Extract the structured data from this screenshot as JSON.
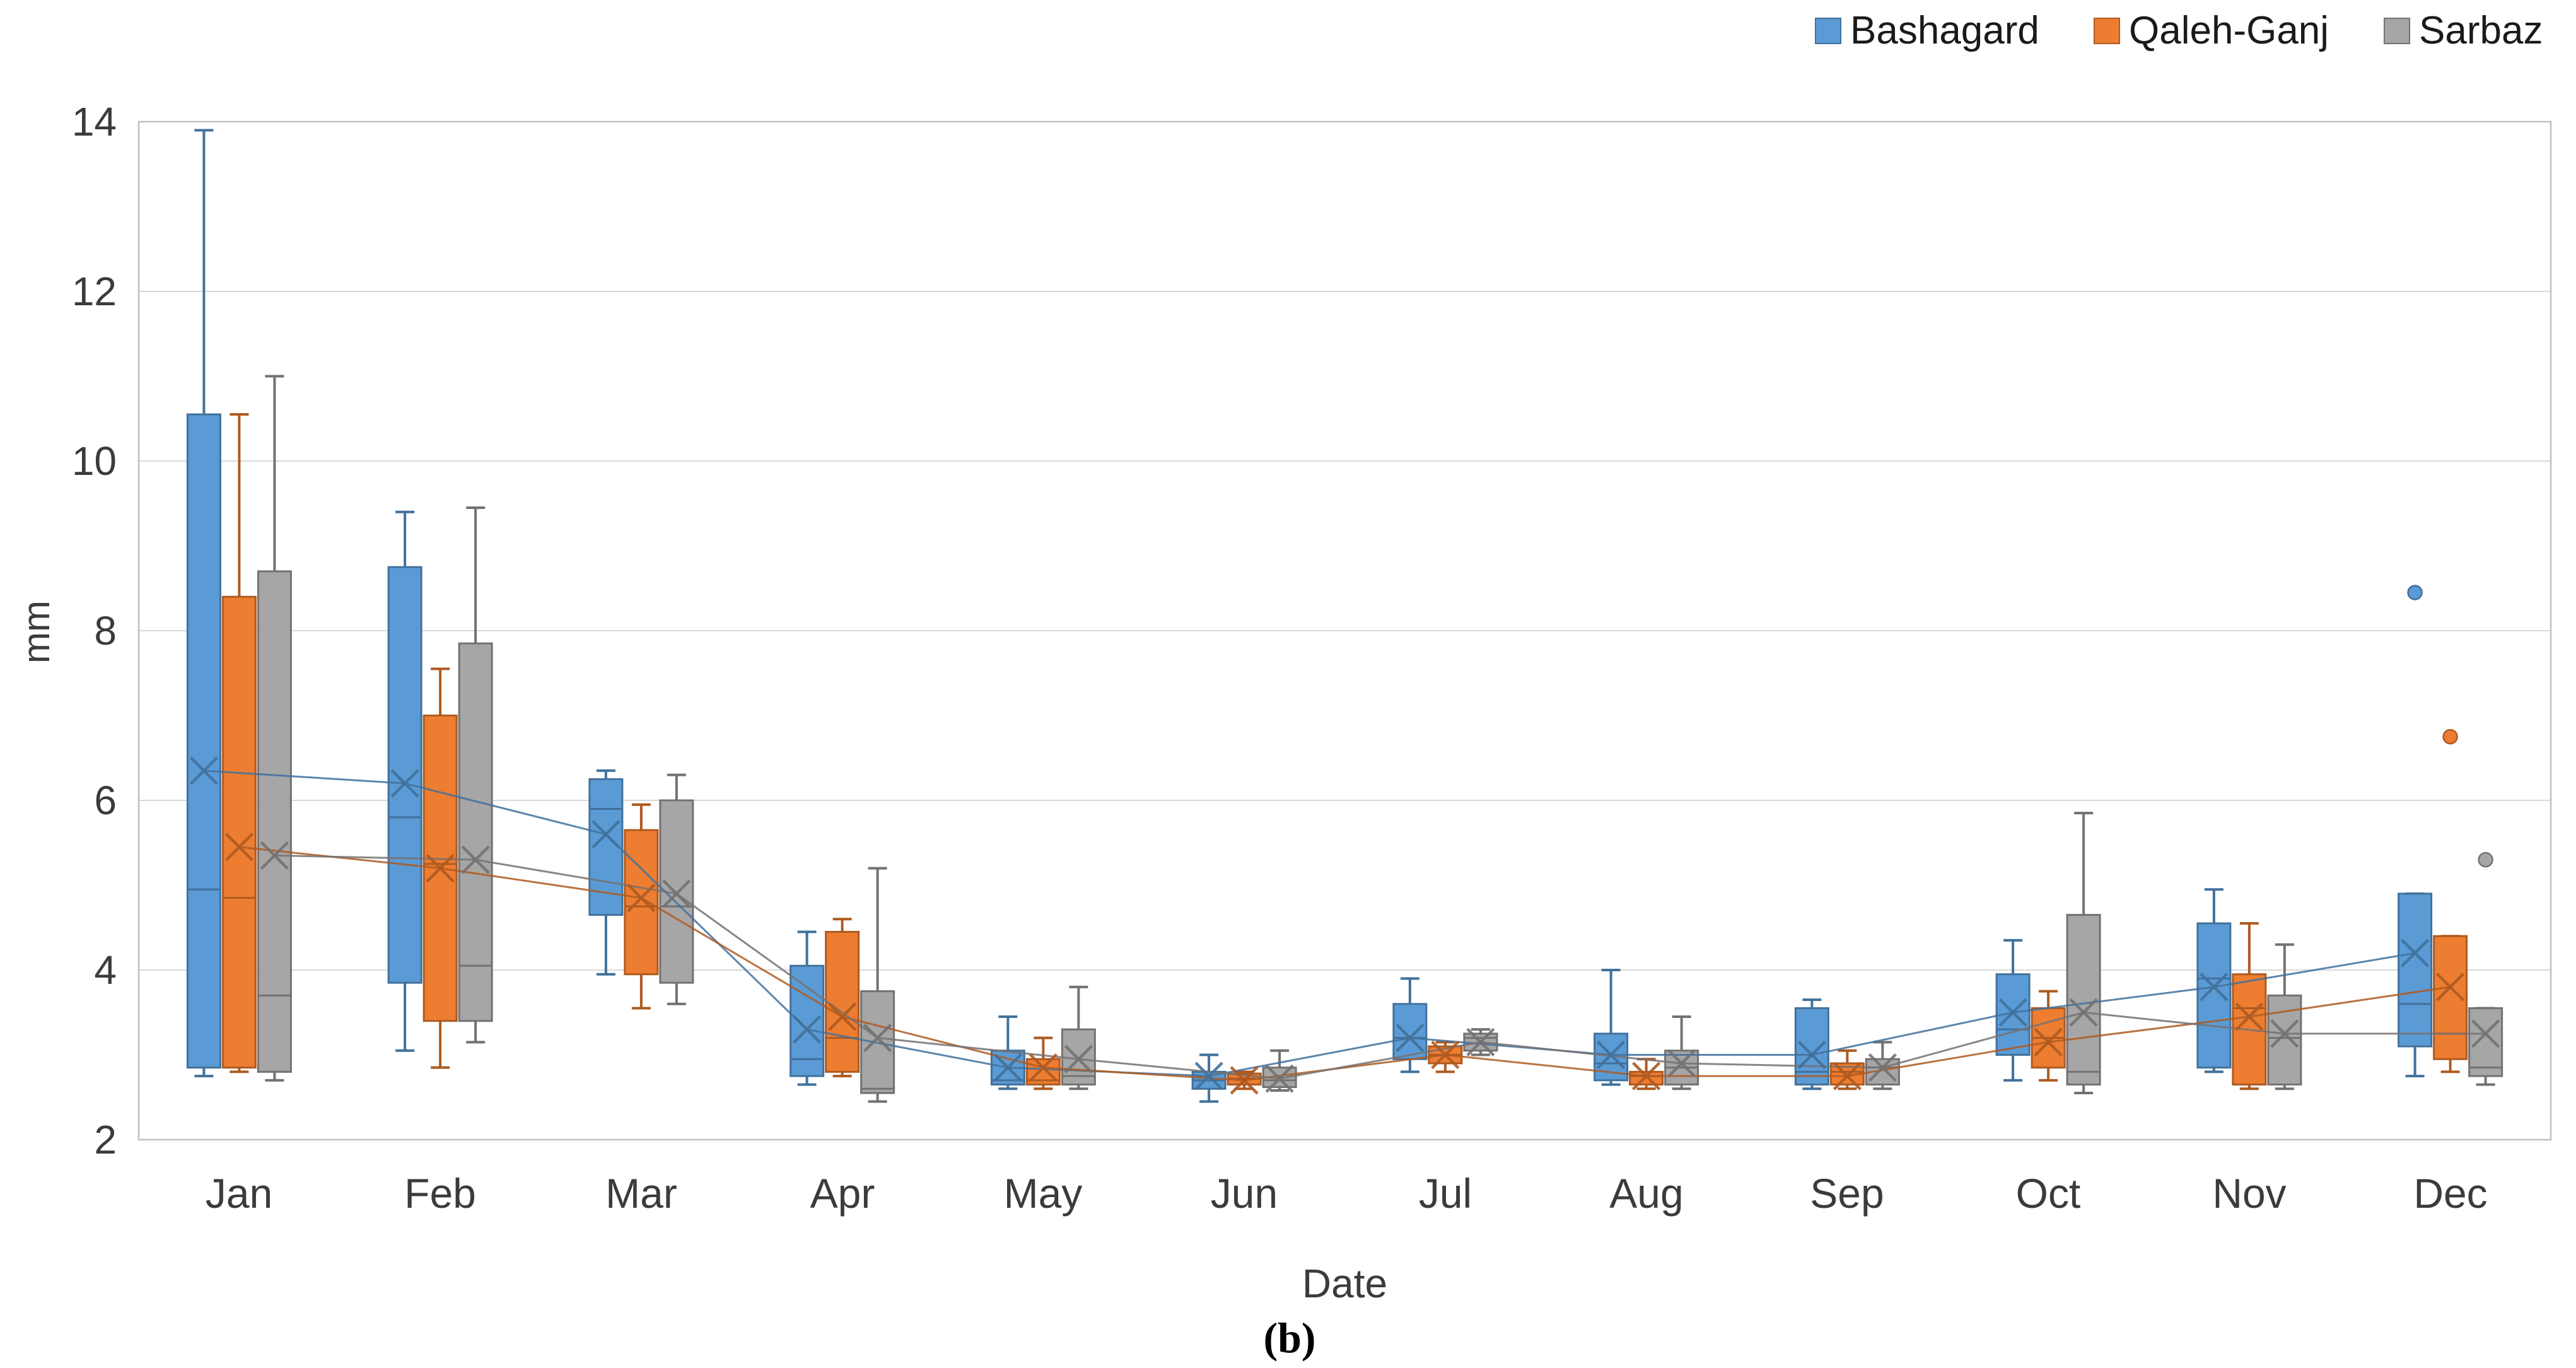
{
  "axes": {
    "y_label": "mm",
    "x_label": "Date",
    "caption": "(b)",
    "y_tick_labels": [
      "14",
      "12",
      "10",
      "8",
      "6",
      "4",
      "2"
    ],
    "grid_color": "#d9d9d9",
    "frame_color": "#bfbfbf",
    "text_color": "#3b3b3b"
  },
  "legend": {
    "position": "top-right",
    "items": [
      {
        "label": "Bashagard"
      },
      {
        "label": "Qaleh-Ganj"
      },
      {
        "label": "Sarbaz"
      }
    ]
  },
  "chart_data": {
    "type": "boxplot",
    "title": "",
    "xlabel": "Date",
    "ylabel": "mm",
    "ylim": [
      2,
      14
    ],
    "y_ticks": [
      2,
      4,
      6,
      8,
      10,
      12,
      14
    ],
    "grid": true,
    "legend_position": "top-right",
    "categories": [
      "Jan",
      "Feb",
      "Mar",
      "Apr",
      "May",
      "Jun",
      "Jul",
      "Aug",
      "Sep",
      "Oct",
      "Nov",
      "Dec"
    ],
    "mean_marker": "x",
    "mean_line": true,
    "series": [
      {
        "name": "Bashagard",
        "fill": "#5B9BD5",
        "stroke": "#41719C",
        "stats": [
          {
            "min": 2.75,
            "q1": 2.85,
            "median": 4.95,
            "q3": 10.55,
            "max": 13.9,
            "mean": 6.35,
            "outliers": []
          },
          {
            "min": 3.05,
            "q1": 3.85,
            "median": 5.8,
            "q3": 8.75,
            "max": 9.4,
            "mean": 6.2,
            "outliers": []
          },
          {
            "min": 3.95,
            "q1": 4.65,
            "median": 5.9,
            "q3": 6.25,
            "max": 6.35,
            "mean": 5.6,
            "outliers": []
          },
          {
            "min": 2.65,
            "q1": 2.75,
            "median": 2.95,
            "q3": 4.05,
            "max": 4.45,
            "mean": 3.3,
            "outliers": []
          },
          {
            "min": 2.6,
            "q1": 2.65,
            "median": 2.7,
            "q3": 3.05,
            "max": 3.45,
            "mean": 2.85,
            "outliers": []
          },
          {
            "min": 2.45,
            "q1": 2.6,
            "median": 2.7,
            "q3": 2.8,
            "max": 3.0,
            "mean": 2.75,
            "outliers": []
          },
          {
            "min": 2.8,
            "q1": 2.95,
            "median": 3.2,
            "q3": 3.6,
            "max": 3.9,
            "mean": 3.2,
            "outliers": []
          },
          {
            "min": 2.65,
            "q1": 2.7,
            "median": 2.9,
            "q3": 3.25,
            "max": 4.0,
            "mean": 3.0,
            "outliers": []
          },
          {
            "min": 2.6,
            "q1": 2.65,
            "median": 2.8,
            "q3": 3.55,
            "max": 3.65,
            "mean": 3.0,
            "outliers": []
          },
          {
            "min": 2.7,
            "q1": 3.0,
            "median": 3.3,
            "q3": 3.95,
            "max": 4.35,
            "mean": 3.5,
            "outliers": []
          },
          {
            "min": 2.8,
            "q1": 2.85,
            "median": 3.9,
            "q3": 4.55,
            "max": 4.95,
            "mean": 3.8,
            "outliers": []
          },
          {
            "min": 2.75,
            "q1": 3.1,
            "median": 3.6,
            "q3": 4.9,
            "max": 4.9,
            "mean": 4.2,
            "outliers": [
              8.45
            ]
          }
        ]
      },
      {
        "name": "Qaleh-Ganj",
        "fill": "#ED7D31",
        "stroke": "#AE5A21",
        "stats": [
          {
            "min": 2.8,
            "q1": 2.85,
            "median": 4.85,
            "q3": 8.4,
            "max": 10.55,
            "mean": 5.45,
            "outliers": []
          },
          {
            "min": 2.85,
            "q1": 3.4,
            "median": 5.25,
            "q3": 7.0,
            "max": 7.55,
            "mean": 5.2,
            "outliers": []
          },
          {
            "min": 3.55,
            "q1": 3.95,
            "median": 4.75,
            "q3": 5.65,
            "max": 5.95,
            "mean": 4.85,
            "outliers": []
          },
          {
            "min": 2.75,
            "q1": 2.8,
            "median": 3.2,
            "q3": 4.45,
            "max": 4.6,
            "mean": 3.45,
            "outliers": []
          },
          {
            "min": 2.6,
            "q1": 2.65,
            "median": 2.7,
            "q3": 2.95,
            "max": 3.2,
            "mean": 2.85,
            "outliers": []
          },
          {
            "min": 2.6,
            "q1": 2.65,
            "median": 2.72,
            "q3": 2.78,
            "max": 2.8,
            "mean": 2.7,
            "outliers": []
          },
          {
            "min": 2.8,
            "q1": 2.9,
            "median": 3.0,
            "q3": 3.1,
            "max": 3.15,
            "mean": 3.0,
            "outliers": []
          },
          {
            "min": 2.6,
            "q1": 2.65,
            "median": 2.75,
            "q3": 2.8,
            "max": 2.95,
            "mean": 2.75,
            "outliers": []
          },
          {
            "min": 2.6,
            "q1": 2.65,
            "median": 2.8,
            "q3": 2.9,
            "max": 3.05,
            "mean": 2.75,
            "outliers": []
          },
          {
            "min": 2.7,
            "q1": 2.85,
            "median": 3.2,
            "q3": 3.55,
            "max": 3.75,
            "mean": 3.15,
            "outliers": []
          },
          {
            "min": 2.6,
            "q1": 2.65,
            "median": 3.55,
            "q3": 3.95,
            "max": 4.55,
            "mean": 3.45,
            "outliers": []
          },
          {
            "min": 2.8,
            "q1": 2.95,
            "median": 3.25,
            "q3": 4.4,
            "max": 4.4,
            "mean": 3.8,
            "outliers": [
              6.75
            ]
          }
        ]
      },
      {
        "name": "Sarbaz",
        "fill": "#A6A6A6",
        "stroke": "#757171",
        "stats": [
          {
            "min": 2.7,
            "q1": 2.8,
            "median": 3.7,
            "q3": 8.7,
            "max": 11.0,
            "mean": 5.35,
            "outliers": []
          },
          {
            "min": 3.15,
            "q1": 3.4,
            "median": 4.05,
            "q3": 7.85,
            "max": 9.45,
            "mean": 5.3,
            "outliers": []
          },
          {
            "min": 3.6,
            "q1": 3.85,
            "median": 4.75,
            "q3": 6.0,
            "max": 6.3,
            "mean": 4.9,
            "outliers": []
          },
          {
            "min": 2.45,
            "q1": 2.55,
            "median": 2.6,
            "q3": 3.75,
            "max": 5.2,
            "mean": 3.2,
            "outliers": []
          },
          {
            "min": 2.6,
            "q1": 2.65,
            "median": 2.75,
            "q3": 3.3,
            "max": 3.8,
            "mean": 2.95,
            "outliers": []
          },
          {
            "min": 2.58,
            "q1": 2.62,
            "median": 2.7,
            "q3": 2.85,
            "max": 3.05,
            "mean": 2.72,
            "outliers": []
          },
          {
            "min": 3.0,
            "q1": 3.05,
            "median": 3.2,
            "q3": 3.25,
            "max": 3.3,
            "mean": 3.15,
            "outliers": []
          },
          {
            "min": 2.6,
            "q1": 2.65,
            "median": 2.85,
            "q3": 3.05,
            "max": 3.45,
            "mean": 2.9,
            "outliers": []
          },
          {
            "min": 2.6,
            "q1": 2.65,
            "median": 2.85,
            "q3": 2.95,
            "max": 3.15,
            "mean": 2.85,
            "outliers": []
          },
          {
            "min": 2.55,
            "q1": 2.65,
            "median": 2.8,
            "q3": 4.65,
            "max": 5.85,
            "mean": 3.5,
            "outliers": []
          },
          {
            "min": 2.6,
            "q1": 2.65,
            "median": 3.2,
            "q3": 3.7,
            "max": 4.3,
            "mean": 3.25,
            "outliers": []
          },
          {
            "min": 2.65,
            "q1": 2.75,
            "median": 2.85,
            "q3": 3.55,
            "max": 3.55,
            "mean": 3.25,
            "outliers": [
              5.3
            ]
          }
        ]
      }
    ]
  }
}
